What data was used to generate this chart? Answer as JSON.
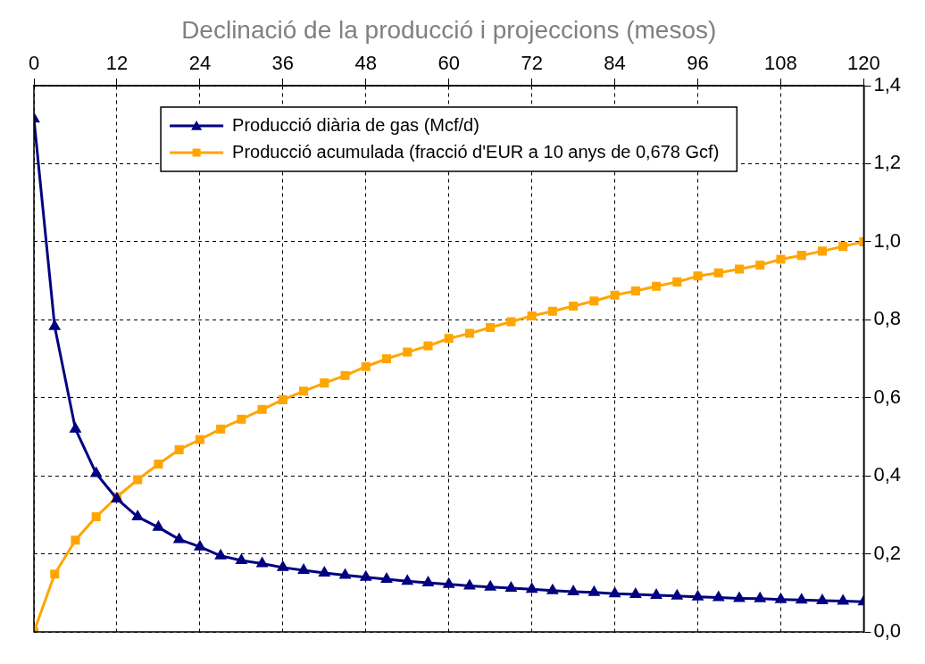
{
  "chart_data": {
    "type": "line",
    "xlabel": "Declinació de la producció i projeccions (mesos)",
    "x": [
      0,
      3,
      6,
      9,
      12,
      15,
      18,
      21,
      24,
      27,
      30,
      33,
      36,
      39,
      42,
      45,
      48,
      51,
      54,
      57,
      60,
      63,
      66,
      69,
      72,
      75,
      78,
      81,
      84,
      87,
      90,
      93,
      96,
      99,
      102,
      105,
      108,
      111,
      114,
      117,
      120
    ],
    "xlim": [
      0,
      120
    ],
    "xticks": [
      0,
      12,
      24,
      36,
      48,
      60,
      72,
      84,
      96,
      108,
      120
    ],
    "ylim": [
      0,
      1.4
    ],
    "yticks": [
      {
        "value": 0,
        "label": "0,0"
      },
      {
        "value": 0.2,
        "label": "0,2"
      },
      {
        "value": 0.4,
        "label": "0,4"
      },
      {
        "value": 0.6,
        "label": "0,6"
      },
      {
        "value": 0.8,
        "label": "0,8"
      },
      {
        "value": 1,
        "label": "1,0"
      },
      {
        "value": 1.2,
        "label": "1,2"
      },
      {
        "value": 1.4,
        "label": "1,4"
      }
    ],
    "grid": true,
    "legend": "top",
    "line_style": "solid",
    "series": [
      {
        "name": "Producció diària de gas (Mcf/d)",
        "color": "#000080",
        "marker": "triangle",
        "values": [
          1.315,
          0.783,
          0.52,
          0.406,
          0.341,
          0.295,
          0.268,
          0.237,
          0.218,
          0.195,
          0.183,
          0.175,
          0.165,
          0.158,
          0.151,
          0.145,
          0.14,
          0.135,
          0.13,
          0.126,
          0.122,
          0.118,
          0.115,
          0.112,
          0.109,
          0.106,
          0.103,
          0.101,
          0.098,
          0.096,
          0.094,
          0.092,
          0.09,
          0.088,
          0.086,
          0.085,
          0.083,
          0.082,
          0.08,
          0.079,
          0.077
        ]
      },
      {
        "name": "Producció acumulada (fracció d'EUR a 10 anys de 0,678 Gcf)",
        "color": "#ffa500",
        "marker": "square",
        "values": [
          0,
          0.148,
          0.235,
          0.295,
          0.346,
          0.39,
          0.43,
          0.467,
          0.493,
          0.52,
          0.545,
          0.57,
          0.595,
          0.617,
          0.638,
          0.657,
          0.68,
          0.7,
          0.717,
          0.733,
          0.752,
          0.765,
          0.78,
          0.795,
          0.81,
          0.822,
          0.835,
          0.848,
          0.863,
          0.874,
          0.886,
          0.897,
          0.912,
          0.92,
          0.93,
          0.94,
          0.955,
          0.965,
          0.976,
          0.988,
          1.0
        ]
      }
    ]
  }
}
